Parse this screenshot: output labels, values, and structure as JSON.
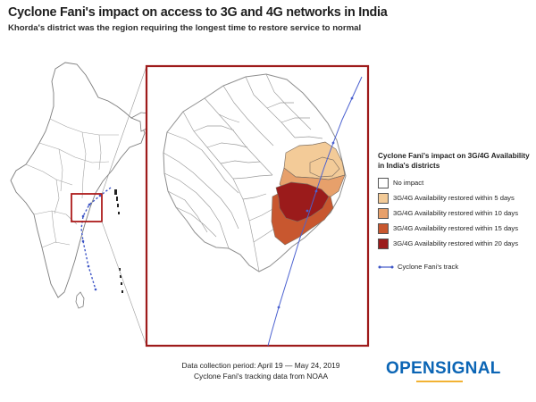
{
  "header": {
    "title": "Cyclone Fani's impact on access to 3G and 4G networks in India",
    "subtitle": "Khorda's district was the region requiring the longest time to restore service to normal"
  },
  "legend": {
    "title": "Cyclone Fani's impact on 3G/4G Availability in India's districts",
    "items": [
      {
        "label": "No impact",
        "color": "#ffffff"
      },
      {
        "label": "3G/4G Availability restored within 5 days",
        "color": "#f3cb98"
      },
      {
        "label": "3G/4G Availability restored within 10 days",
        "color": "#e7a06b"
      },
      {
        "label": "3G/4G Availability restored within 15 days",
        "color": "#c8572f"
      },
      {
        "label": "3G/4G Availability restored within 20 days",
        "color": "#9b1b1b"
      }
    ],
    "track_label": "Cyclone Fani's track"
  },
  "footer": {
    "line1": "Data collection period: April 19 — May 24, 2019",
    "line2": "Cyclone Fani's tracking data from NOAA"
  },
  "brand": {
    "name": "OPENSIGNAL"
  },
  "colors": {
    "inset_frame": "#9e1b1b",
    "track": "#3e56c7",
    "land_fill": "#ffffff",
    "border": "#8f8f8f"
  }
}
